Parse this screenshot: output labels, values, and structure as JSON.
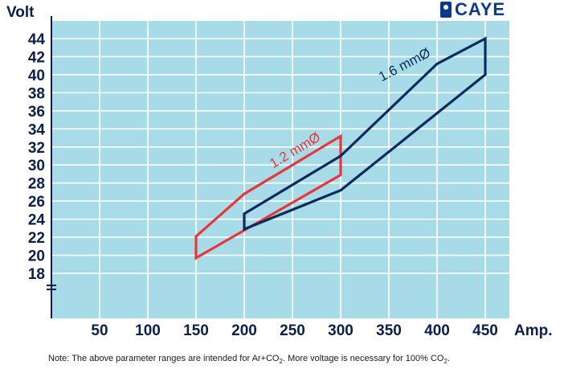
{
  "brand": {
    "name": "CAYE"
  },
  "note": {
    "prefix": "Note: The above parameter ranges are intended for Ar+CO",
    "sub1": "2",
    "middle": ". More voltage is necessary for 100% CO",
    "sub2": "2",
    "suffix": "."
  },
  "chart_data": {
    "type": "line",
    "ylabel": "Volt",
    "xlabel": "Amp.",
    "x_ticks": [
      50,
      100,
      150,
      200,
      250,
      300,
      350,
      400,
      450
    ],
    "y_ticks": [
      18,
      20,
      22,
      24,
      26,
      28,
      30,
      32,
      34,
      36,
      38,
      40,
      42,
      44
    ],
    "xlim": [
      0,
      475
    ],
    "ylim": [
      18,
      44
    ],
    "axis_break": "y-axis below 18",
    "grid": true,
    "background": "#a8dbe8",
    "series": [
      {
        "name": "1.2 mmØ",
        "color": "#e8373a",
        "closed": true,
        "points": [
          [
            150,
            22.1
          ],
          [
            200,
            26.8
          ],
          [
            300,
            33.2
          ],
          [
            300,
            28.9
          ],
          [
            150,
            19.7
          ]
        ]
      },
      {
        "name": "1.6 mmØ",
        "color": "#0d2a5e",
        "closed": true,
        "points": [
          [
            200,
            24.6
          ],
          [
            300,
            31.0
          ],
          [
            400,
            41.2
          ],
          [
            450,
            44.0
          ],
          [
            450,
            40.0
          ],
          [
            300,
            27.2
          ],
          [
            200,
            22.9
          ]
        ]
      }
    ]
  }
}
